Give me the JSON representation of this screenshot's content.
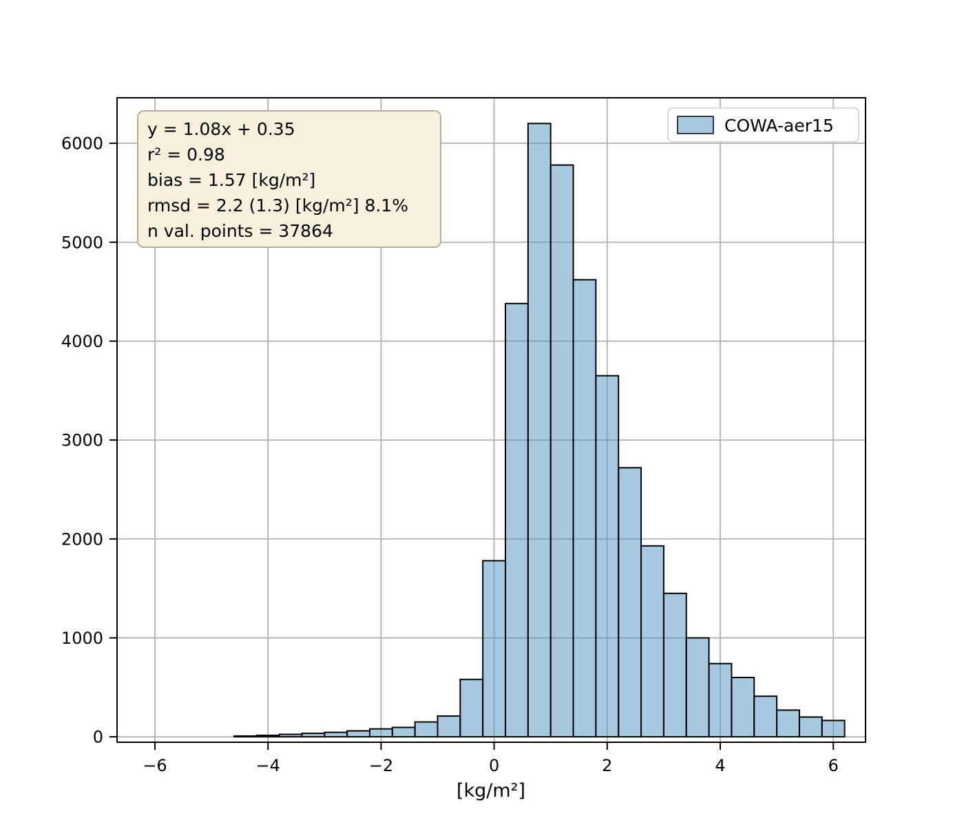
{
  "figure": {
    "background": "#ffffff"
  },
  "chart_data": {
    "type": "bar",
    "subtype": "histogram",
    "title": "",
    "xlabel": "[kg/m²]",
    "ylabel": "",
    "xlim": [
      -6.67,
      6.57
    ],
    "ylim": [
      -55,
      6460
    ],
    "grid": true,
    "x_ticks": [
      -6,
      -4,
      -2,
      0,
      2,
      4,
      6
    ],
    "x_tick_labels": [
      "−6",
      "−4",
      "−2",
      "0",
      "2",
      "4",
      "6"
    ],
    "y_ticks": [
      0,
      1000,
      2000,
      3000,
      4000,
      5000,
      6000
    ],
    "y_tick_labels": [
      "0",
      "1000",
      "2000",
      "3000",
      "4000",
      "5000",
      "6000"
    ],
    "series": [
      {
        "name": "COWA-aer15",
        "bin_start": -4.6,
        "bin_width": 0.4,
        "counts": [
          8,
          15,
          25,
          35,
          45,
          60,
          80,
          95,
          150,
          210,
          580,
          1780,
          4380,
          6200,
          5780,
          4620,
          3650,
          2720,
          1930,
          1450,
          1000,
          740,
          600,
          410,
          270,
          200,
          165
        ]
      }
    ],
    "legend": {
      "position": "upper right",
      "entries": [
        {
          "label": "COWA-aer15"
        }
      ]
    },
    "annotation_box": {
      "lines": [
        "y = 1.08x + 0.35",
        "r² = 0.98",
        "bias = 1.57 [kg/m²]",
        "rmsd = 2.2 (1.3) [kg/m²] 8.1%",
        "n val. points = 37864"
      ],
      "stats": {
        "slope": 1.08,
        "intercept": 0.35,
        "r_squared": 0.98,
        "bias_kg_m2": 1.57,
        "rmsd_kg_m2": 2.2,
        "rmsd_centered_kg_m2": 1.3,
        "rmsd_percent": "8.1%",
        "n_val_points": 37864
      }
    },
    "colors": {
      "bar_fill": "#4f93c0",
      "bar_fill_opacity": 0.5,
      "bar_edge": "#000000",
      "grid": "#b0b0b0",
      "axis": "#000000",
      "annotation_fill": "#f8efdc",
      "annotation_edge": "#b8ad92",
      "legend_fill": "#ffffff",
      "legend_edge": "#cccccc"
    }
  }
}
